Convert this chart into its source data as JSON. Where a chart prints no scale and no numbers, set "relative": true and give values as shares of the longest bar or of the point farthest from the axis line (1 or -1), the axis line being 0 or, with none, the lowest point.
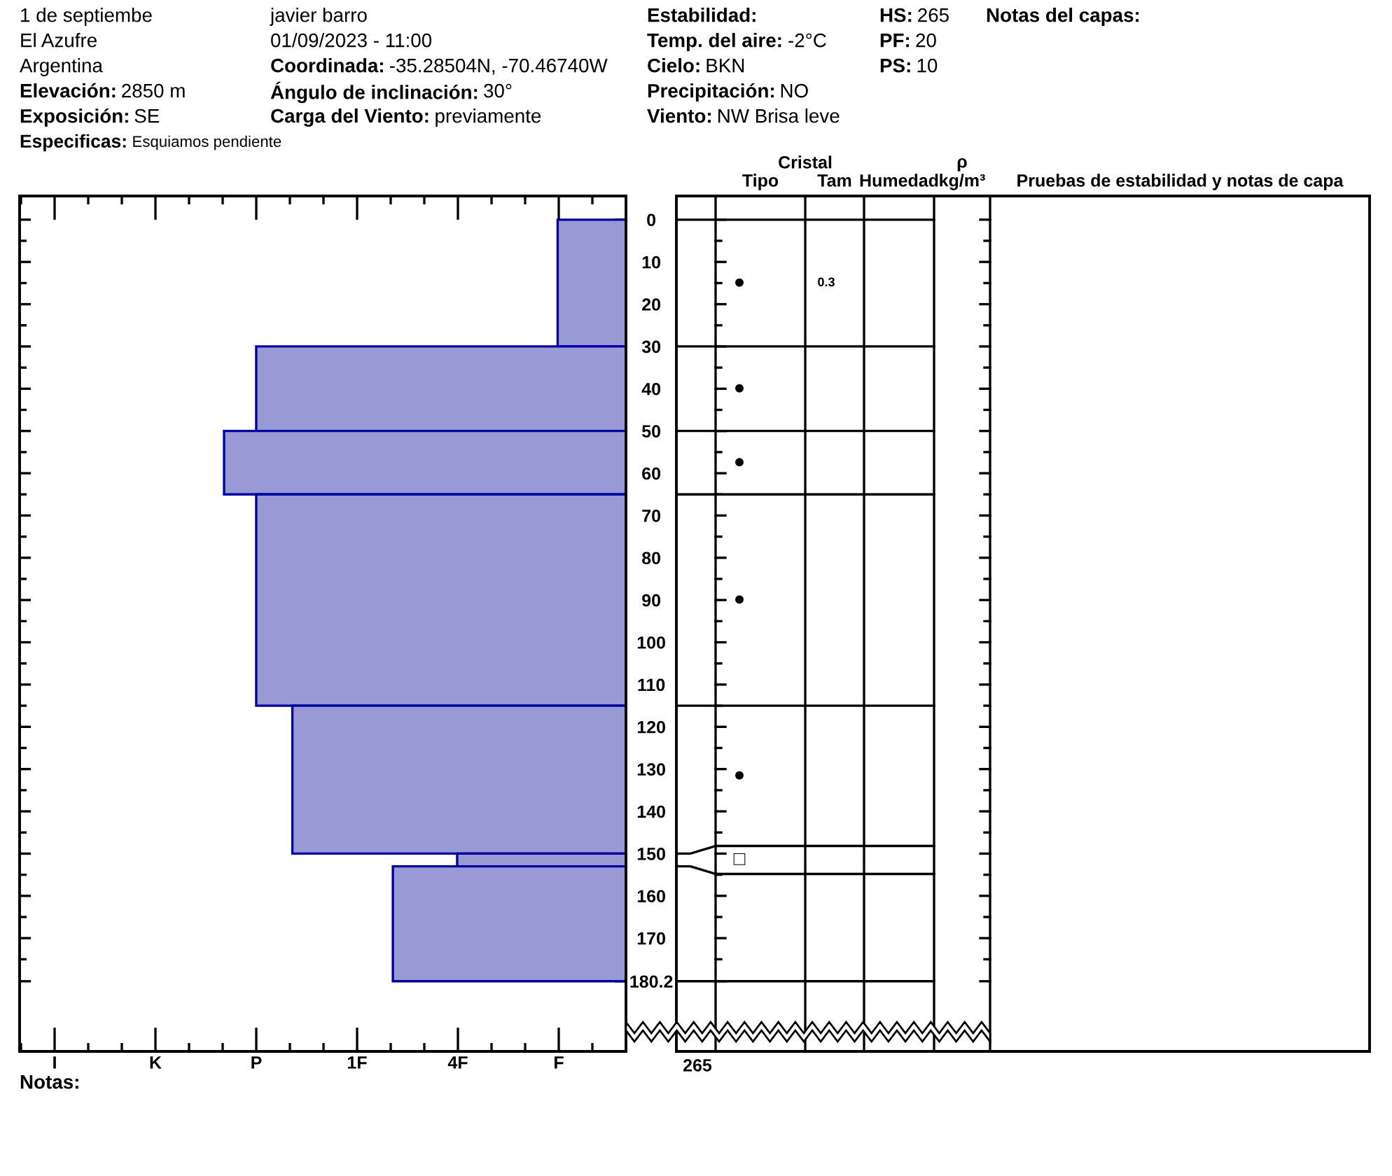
{
  "chart_data": [
    {
      "type": "bar",
      "orientation": "horizontal",
      "relative": true,
      "x": [
        15,
        40,
        57.5,
        90,
        132.5,
        151.5,
        166.6
      ],
      "values": [
        0.17,
        0.92,
        1,
        0.92,
        0.83,
        0.42,
        0.58
      ],
      "color": "#9999d5",
      "ylim": [
        196.8,
        -5.6
      ],
      "yticks": [
        0,
        10,
        20,
        30,
        40,
        50,
        60,
        70,
        80,
        90,
        100,
        110,
        120,
        130,
        140,
        150,
        160,
        170,
        180.2,
        {
          "value": 5,
          "label": null
        },
        {
          "value": 15,
          "label": null
        },
        {
          "value": 25,
          "label": null
        },
        {
          "value": 35,
          "label": null
        },
        {
          "value": 45,
          "label": null
        },
        {
          "value": 55,
          "label": null
        },
        {
          "value": 65,
          "label": null
        },
        {
          "value": 75,
          "label": null
        },
        {
          "value": 85,
          "label": null
        },
        {
          "value": 95,
          "label": null
        },
        {
          "value": 105,
          "label": null
        },
        {
          "value": 115,
          "label": null
        },
        {
          "value": 125,
          "label": null
        },
        {
          "value": 135,
          "label": null
        },
        {
          "value": 145,
          "label": null
        },
        {
          "value": 155,
          "label": null
        },
        {
          "value": 165,
          "label": null
        },
        {
          "value": 175,
          "label": null
        }
      ],
      "annotations": [
        "1 de septiembe",
        "El Azufre",
        "Argentina",
        "Elevación:",
        "2850 m",
        "Exposición:",
        "SE",
        "Especificas:",
        "Esquiamos pendiente",
        "javier barro",
        "01/09/2023 - 11:00",
        "Coordinada:",
        "-35.28504N, -70.46740W",
        "Ángulo de inclinación:",
        "30°",
        "Carga del Viento:",
        "previamente",
        "Estabilidad:",
        "Temp. del aire:",
        "-2°C",
        "Cielo:",
        "BKN",
        "Precipitación:",
        "NO",
        "Viento:",
        "NW Brisa leve",
        "HS:",
        "265",
        "PF:",
        "20",
        "PS:",
        "10",
        "Notas del capas:",
        "Notas:",
        "265",
        "I",
        "K",
        "P",
        "1F",
        "4F",
        "F"
      ]
    },
    {
      "type": "other",
      "categories": [
        "Tipo",
        "Tam",
        "Humedad",
        "ρ\nkg/m³",
        "Pruebas de estabilidad y notas de capa"
      ],
      "annotations": [
        "Cristal",
        "●",
        "●",
        "●",
        "●",
        "●",
        "□",
        "0.3"
      ]
    }
  ]
}
